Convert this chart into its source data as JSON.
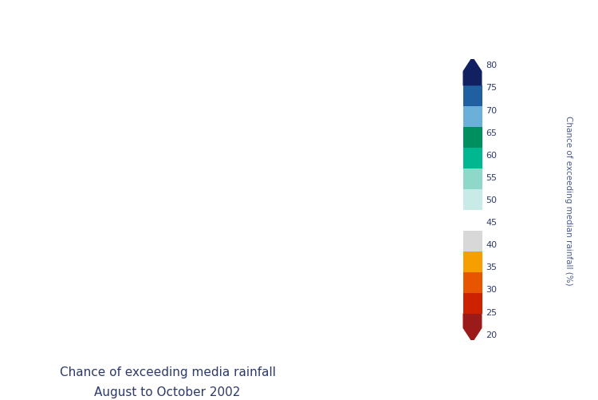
{
  "title_line1": "Chance of exceeding media rainfall",
  "title_line2": "August to October 2002",
  "title_color": "#2d3a6b",
  "title_fontsize": 11,
  "colorbar_label": "Chance of exceeding median rainfall (%)",
  "colorbar_label_color": "#4a5a8a",
  "colorbar_ticks": [
    20,
    25,
    30,
    35,
    40,
    45,
    50,
    55,
    60,
    65,
    70,
    75,
    80
  ],
  "colorbar_colors": [
    "#4a0a0a",
    "#9b1a1a",
    "#cc2200",
    "#e85500",
    "#f5a000",
    "#d8d8d8",
    "#ffffff",
    "#c8ebe8",
    "#8dd8c8",
    "#00b890",
    "#009060",
    "#6ab0d8",
    "#2060a0",
    "#102060"
  ],
  "background_color": "#ffffff",
  "map_extent": [
    112,
    154,
    -44,
    -10
  ],
  "colorbar_vmin": 20,
  "colorbar_vmax": 80,
  "state_line_color": "#222222",
  "coast_line_color": "#222222"
}
